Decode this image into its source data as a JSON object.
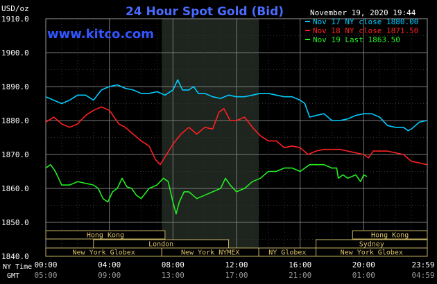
{
  "chart_data": {
    "type": "line",
    "title": "24 Hour Spot Gold (Bid)",
    "unit_label": "USD/oz",
    "watermark": "www.kitco.com",
    "timestamp": "November 19, 2020 19:44",
    "ylim": [
      1840,
      1910
    ],
    "y_ticks": [
      "1910.0",
      "1900.0",
      "1890.0",
      "1880.0",
      "1870.0",
      "1860.0",
      "1850.0",
      "1840.0"
    ],
    "x_row_labels": {
      "ny": "NY Time",
      "gmt": "GMT"
    },
    "x_ticks_ny": [
      "00:00",
      "04:00",
      "08:00",
      "12:00",
      "16:00",
      "20:00",
      "23:59"
    ],
    "x_ticks_gmt": [
      "05:00",
      "09:00",
      "13:00",
      "17:00",
      "21:00",
      "01:00",
      "04:59"
    ],
    "legend": [
      {
        "label": "Nov 17 NY close 1880.00",
        "color": "#00ccff"
      },
      {
        "label": "Nov 18 NY close 1871.50",
        "color": "#ff2020"
      },
      {
        "label": "Nov 19 Last 1863.50",
        "color": "#22ee22"
      }
    ],
    "sessions": [
      {
        "name": "Hong Kong",
        "row": 1,
        "start": 0.0,
        "end": 7.5
      },
      {
        "name": "Hong Kong",
        "row": 1,
        "start": 19.3,
        "end": 24.0
      },
      {
        "name": "London",
        "row": 2,
        "start": 3.0,
        "end": 11.5
      },
      {
        "name": "Sydney",
        "row": 2,
        "start": 17.0,
        "end": 24.0
      },
      {
        "name": "New York Globex",
        "row": 3,
        "start": 0.0,
        "end": 7.3
      },
      {
        "name": "New York NYMEX",
        "row": 3,
        "start": 7.3,
        "end": 13.4
      },
      {
        "name": "NY Globex",
        "row": 3,
        "start": 13.4,
        "end": 17.0
      },
      {
        "name": "New York Globex",
        "row": 3,
        "start": 17.0,
        "end": 24.0
      }
    ],
    "shaded_period": [
      7.3,
      13.4
    ],
    "series": [
      {
        "color": "#00ccff",
        "points": [
          [
            0,
            1887
          ],
          [
            0.5,
            1886
          ],
          [
            1,
            1885
          ],
          [
            1.5,
            1886
          ],
          [
            2,
            1887.5
          ],
          [
            2.5,
            1887.5
          ],
          [
            3,
            1886
          ],
          [
            3.5,
            1889
          ],
          [
            4,
            1890
          ],
          [
            4.5,
            1890.5
          ],
          [
            5,
            1889.5
          ],
          [
            5.5,
            1889
          ],
          [
            6,
            1888
          ],
          [
            6.5,
            1888
          ],
          [
            7,
            1888.5
          ],
          [
            7.5,
            1887.5
          ],
          [
            8,
            1889
          ],
          [
            8.3,
            1892
          ],
          [
            8.6,
            1889
          ],
          [
            9,
            1889
          ],
          [
            9.3,
            1890
          ],
          [
            9.6,
            1888
          ],
          [
            10,
            1888
          ],
          [
            10.5,
            1887
          ],
          [
            11,
            1886.5
          ],
          [
            11.5,
            1887.5
          ],
          [
            12,
            1887
          ],
          [
            12.5,
            1887
          ],
          [
            13,
            1887.5
          ],
          [
            13.5,
            1888
          ],
          [
            14,
            1888
          ],
          [
            14.5,
            1887.5
          ],
          [
            15,
            1887
          ],
          [
            15.5,
            1887
          ],
          [
            16,
            1886
          ],
          [
            16.3,
            1885
          ],
          [
            16.6,
            1881
          ],
          [
            17,
            1881.5
          ],
          [
            17.5,
            1882
          ],
          [
            18,
            1880
          ],
          [
            18.5,
            1880
          ],
          [
            19,
            1880.5
          ],
          [
            19.5,
            1881.5
          ],
          [
            20,
            1882
          ],
          [
            20.5,
            1882
          ],
          [
            21,
            1881
          ],
          [
            21.5,
            1878.5
          ],
          [
            22,
            1878
          ],
          [
            22.5,
            1878
          ],
          [
            22.8,
            1877
          ],
          [
            23,
            1877.5
          ],
          [
            23.5,
            1879.5
          ],
          [
            23.98,
            1880
          ]
        ]
      },
      {
        "color": "#ff2020",
        "points": [
          [
            0,
            1879.5
          ],
          [
            0.5,
            1881
          ],
          [
            1,
            1879
          ],
          [
            1.5,
            1878
          ],
          [
            2,
            1879
          ],
          [
            2.5,
            1881.5
          ],
          [
            3,
            1883
          ],
          [
            3.5,
            1884
          ],
          [
            4,
            1883
          ],
          [
            4.3,
            1881
          ],
          [
            4.6,
            1879
          ],
          [
            5,
            1878
          ],
          [
            5.5,
            1876
          ],
          [
            6,
            1874
          ],
          [
            6.5,
            1872.5
          ],
          [
            6.9,
            1868.5
          ],
          [
            7.2,
            1867
          ],
          [
            7.6,
            1870
          ],
          [
            8,
            1873
          ],
          [
            8.5,
            1876
          ],
          [
            9,
            1878
          ],
          [
            9.5,
            1876
          ],
          [
            10,
            1878
          ],
          [
            10.5,
            1877.5
          ],
          [
            10.9,
            1882.5
          ],
          [
            11.2,
            1883.5
          ],
          [
            11.6,
            1880
          ],
          [
            12,
            1880
          ],
          [
            12.5,
            1881
          ],
          [
            13,
            1878
          ],
          [
            13.5,
            1875.5
          ],
          [
            14,
            1874
          ],
          [
            14.5,
            1874
          ],
          [
            15,
            1872
          ],
          [
            15.5,
            1872.5
          ],
          [
            16,
            1872
          ],
          [
            16.5,
            1870
          ],
          [
            17,
            1871
          ],
          [
            17.5,
            1871.5
          ],
          [
            18,
            1871.5
          ],
          [
            18.5,
            1871.5
          ],
          [
            19,
            1871
          ],
          [
            19.5,
            1870.5
          ],
          [
            20,
            1870
          ],
          [
            20.3,
            1869
          ],
          [
            20.6,
            1871
          ],
          [
            21,
            1871
          ],
          [
            21.5,
            1871
          ],
          [
            22,
            1870.5
          ],
          [
            22.5,
            1870
          ],
          [
            23,
            1868
          ],
          [
            23.5,
            1867.5
          ],
          [
            23.98,
            1867
          ]
        ]
      },
      {
        "color": "#22ee22",
        "points": [
          [
            0,
            1866
          ],
          [
            0.3,
            1867
          ],
          [
            0.6,
            1865
          ],
          [
            1,
            1861
          ],
          [
            1.5,
            1861
          ],
          [
            2,
            1862
          ],
          [
            2.5,
            1861.5
          ],
          [
            3,
            1861
          ],
          [
            3.3,
            1860
          ],
          [
            3.6,
            1857
          ],
          [
            3.9,
            1856
          ],
          [
            4.2,
            1859
          ],
          [
            4.5,
            1860
          ],
          [
            4.8,
            1863
          ],
          [
            5.1,
            1860.5
          ],
          [
            5.4,
            1860
          ],
          [
            5.7,
            1858
          ],
          [
            6,
            1857
          ],
          [
            6.5,
            1860
          ],
          [
            7,
            1861
          ],
          [
            7.4,
            1863
          ],
          [
            7.7,
            1862
          ],
          [
            8,
            1856
          ],
          [
            8.2,
            1852.5
          ],
          [
            8.4,
            1856
          ],
          [
            8.7,
            1859
          ],
          [
            9,
            1859
          ],
          [
            9.5,
            1857
          ],
          [
            10,
            1858
          ],
          [
            10.5,
            1859
          ],
          [
            11,
            1860
          ],
          [
            11.3,
            1863
          ],
          [
            11.6,
            1861
          ],
          [
            12,
            1859
          ],
          [
            12.5,
            1860
          ],
          [
            13,
            1862
          ],
          [
            13.5,
            1863
          ],
          [
            14,
            1865
          ],
          [
            14.5,
            1865
          ],
          [
            15,
            1866
          ],
          [
            15.5,
            1866
          ],
          [
            16,
            1865
          ],
          [
            16.3,
            1866
          ],
          [
            16.6,
            1867
          ],
          [
            17,
            1867
          ],
          [
            17.5,
            1867
          ],
          [
            18,
            1866
          ],
          [
            18.3,
            1866
          ],
          [
            18.4,
            1863
          ],
          [
            18.7,
            1864
          ],
          [
            19,
            1863
          ],
          [
            19.5,
            1864
          ],
          [
            19.8,
            1862
          ],
          [
            20,
            1864
          ],
          [
            20.2,
            1863.5
          ]
        ]
      }
    ]
  }
}
